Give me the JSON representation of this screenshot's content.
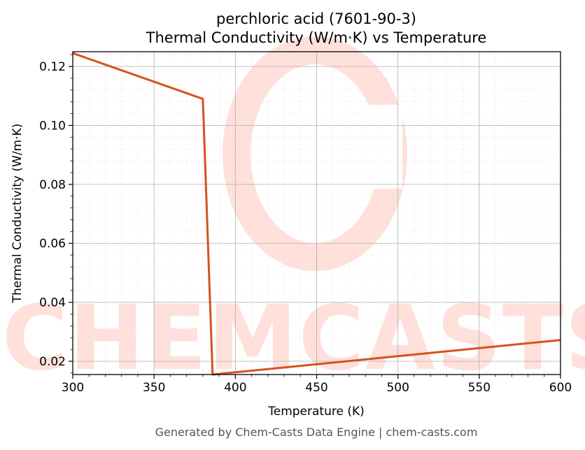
{
  "chart_data": {
    "type": "line",
    "title": "perchloric acid (7601-90-3)",
    "subtitle": "Thermal Conductivity (W/m·K) vs Temperature",
    "xlabel": "Temperature (K)",
    "ylabel": "Thermal Conductivity (W/m·K)",
    "xlim": [
      300,
      600
    ],
    "ylim": [
      0.0155,
      0.125
    ],
    "xticks": [
      300,
      350,
      400,
      450,
      500,
      550,
      600
    ],
    "yticks": [
      0.02,
      0.04,
      0.06,
      0.08,
      0.1,
      0.12
    ],
    "xtick_labels": [
      "300",
      "350",
      "400",
      "450",
      "500",
      "550",
      "600"
    ],
    "ytick_labels": [
      "0.02",
      "0.04",
      "0.06",
      "0.08",
      "0.10",
      "0.12"
    ],
    "grid": true,
    "legend": "none",
    "series": [
      {
        "color": "#d4521f",
        "x": [
          300,
          380,
          386,
          600
        ],
        "y": [
          0.1245,
          0.109,
          0.0155,
          0.0272
        ]
      }
    ]
  },
  "watermark": {
    "text": "CHEMCASTS",
    "color": "#ffe0da"
  },
  "footer": "Generated by Chem-Casts Data Engine | chem-casts.com"
}
